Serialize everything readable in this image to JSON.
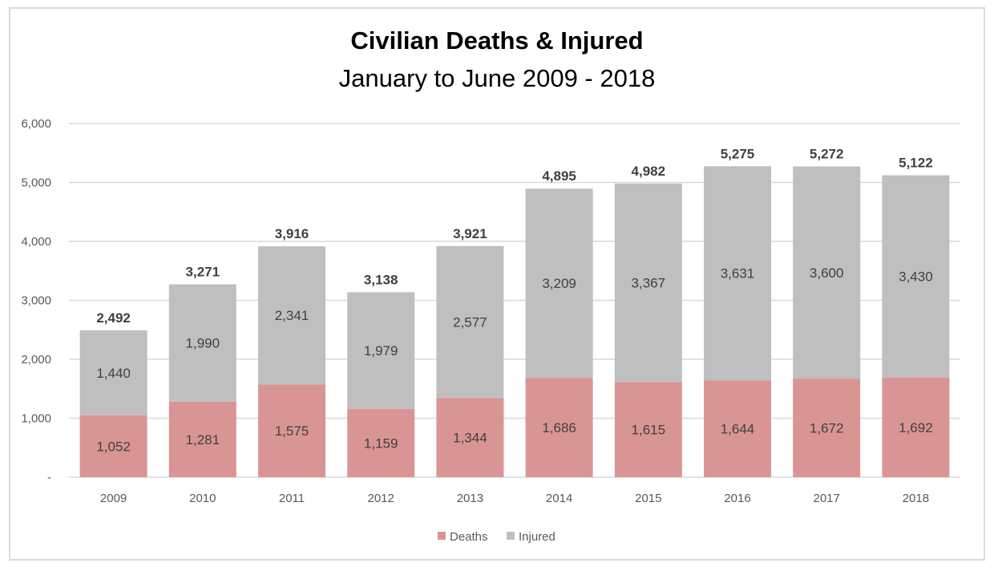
{
  "chart_data": {
    "type": "bar",
    "stacked": true,
    "title": "Civilian Deaths & Injured",
    "subtitle": "January to June 2009 - 2018",
    "xlabel": "",
    "ylabel": "",
    "ylim": [
      0,
      6000
    ],
    "yticks": [
      "-",
      "1,000",
      "2,000",
      "3,000",
      "4,000",
      "5,000",
      "6,000"
    ],
    "grid": true,
    "legend_position": "bottom",
    "categories": [
      "2009",
      "2010",
      "2011",
      "2012",
      "2013",
      "2014",
      "2015",
      "2016",
      "2017",
      "2018"
    ],
    "series": [
      {
        "name": "Deaths",
        "color": "#d99594",
        "values": [
          1052,
          1281,
          1575,
          1159,
          1344,
          1686,
          1615,
          1644,
          1672,
          1692
        ]
      },
      {
        "name": "Injured",
        "color": "#bfbfbf",
        "values": [
          1440,
          1990,
          2341,
          1979,
          2577,
          3209,
          3367,
          3631,
          3600,
          3430
        ]
      }
    ],
    "totals": [
      2492,
      3271,
      3916,
      3138,
      3921,
      4895,
      4982,
      5275,
      5272,
      5122
    ]
  }
}
